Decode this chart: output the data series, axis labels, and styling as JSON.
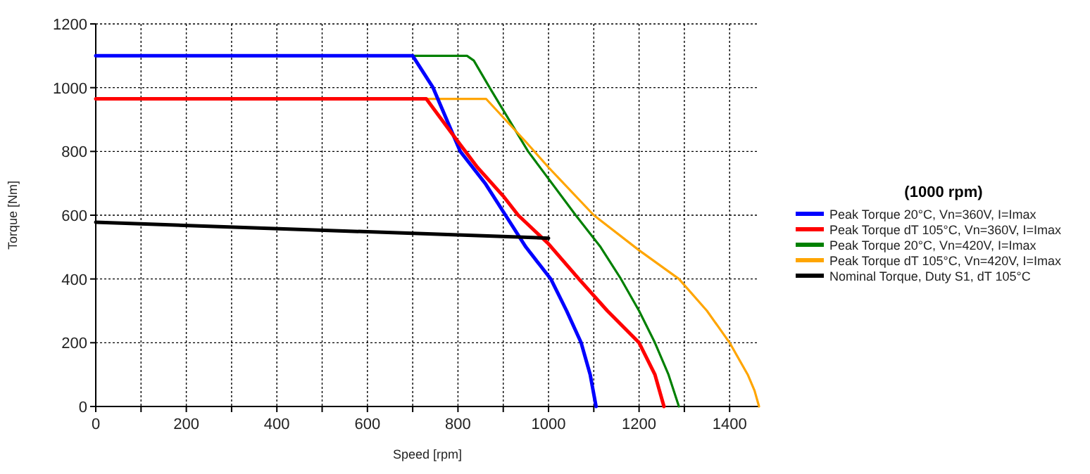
{
  "chart_data": {
    "type": "line",
    "xlabel": "Speed [rpm]",
    "ylabel": "Torque [Nm]",
    "legend_title": "(1000 rpm)",
    "legend": "right",
    "grid": true,
    "line_style": "solid",
    "marker": "none",
    "xlim": [
      0,
      1465
    ],
    "ylim": [
      0,
      1200
    ],
    "xticks": [
      0,
      {
        "value": 100,
        "label": null
      },
      200,
      {
        "value": 300,
        "label": null
      },
      400,
      {
        "value": 500,
        "label": null
      },
      600,
      {
        "value": 700,
        "label": null
      },
      800,
      {
        "value": 900,
        "label": null
      },
      1000,
      {
        "value": 1100,
        "label": null
      },
      1200,
      {
        "value": 1300,
        "label": null
      },
      1400
    ],
    "yticks": [
      0,
      200,
      400,
      600,
      800,
      1000,
      1200
    ],
    "series": [
      {
        "name": "Peak Torque 20°C, Vn=360V, I=Imax",
        "color": "#0000ff",
        "x": [
          0,
          700,
          745,
          805,
          860,
          905,
          950,
          1005,
          1040,
          1072,
          1092,
          1105
        ],
        "values": [
          1100,
          1100,
          1000,
          800,
          700,
          600,
          500,
          400,
          300,
          200,
          100,
          0
        ]
      },
      {
        "name": "Peak Torque dT 105°C, Vn=360V, I=Imax",
        "color": "#ff0000",
        "x": [
          0,
          730,
          790,
          843,
          900,
          933,
          1000,
          1067,
          1130,
          1200,
          1235,
          1255
        ],
        "values": [
          965,
          965,
          850,
          750,
          660,
          600,
          510,
          400,
          300,
          200,
          100,
          0
        ]
      },
      {
        "name": "Peak Torque 20°C, Vn=420V, I=Imax",
        "color": "#008000",
        "x": [
          700,
          820,
          835,
          870,
          955,
          1060,
          1115,
          1160,
          1200,
          1235,
          1265,
          1288
        ],
        "values": [
          1100,
          1100,
          1085,
          1000,
          800,
          600,
          500,
          400,
          300,
          200,
          100,
          0
        ]
      },
      {
        "name": "Peak Torque dT 105°C, Vn=420V, I=Imax",
        "color": "#ffa500",
        "x": [
          730,
          862,
          950,
          1000,
          1100,
          1200,
          1288,
          1350,
          1400,
          1440,
          1455,
          1465
        ],
        "values": [
          965,
          965,
          830,
          750,
          600,
          490,
          400,
          300,
          200,
          100,
          50,
          0
        ]
      },
      {
        "name": "Nominal Torque, Duty S1, dT 105°C",
        "color": "#000000",
        "x": [
          0,
          1000
        ],
        "values": [
          578,
          528
        ]
      }
    ]
  }
}
